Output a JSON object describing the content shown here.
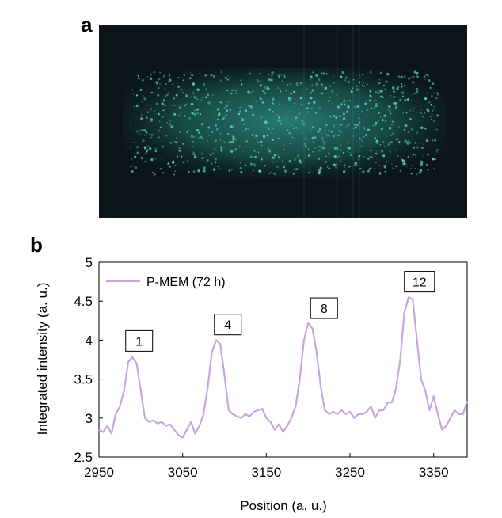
{
  "panels": {
    "a_label": "a",
    "b_label": "b"
  },
  "colors": {
    "trace": "#c9a6dc",
    "micrograph_bg": "#0d1a1f",
    "micrograph_glow": "#3fb9a0"
  },
  "chart_data": {
    "type": "line",
    "xlabel": "Position (a. u.)",
    "ylabel": "Integrated intensity (a. u.)",
    "xlim": [
      2950,
      3390
    ],
    "ylim": [
      2.5,
      5
    ],
    "xticks": [
      2950,
      3050,
      3150,
      3250,
      3350
    ],
    "yticks": [
      2.5,
      3,
      3.5,
      4,
      4.5,
      5
    ],
    "ytick_labels": [
      "2.5",
      "3",
      "3.5",
      "4",
      "4.5",
      "5"
    ],
    "grid": false,
    "legend": {
      "position": "top-left",
      "entries": [
        "P-MEM (72 h)"
      ]
    },
    "series": [
      {
        "name": "P-MEM (72 h)",
        "color": "#c9a6dc",
        "x": [
          2950,
          2955,
          2960,
          2965,
          2970,
          2975,
          2980,
          2985,
          2990,
          2995,
          3000,
          3005,
          3010,
          3015,
          3020,
          3025,
          3030,
          3035,
          3040,
          3045,
          3050,
          3055,
          3060,
          3065,
          3070,
          3075,
          3080,
          3085,
          3090,
          3095,
          3100,
          3105,
          3110,
          3115,
          3120,
          3125,
          3130,
          3135,
          3140,
          3145,
          3150,
          3155,
          3160,
          3165,
          3170,
          3175,
          3180,
          3185,
          3190,
          3195,
          3200,
          3205,
          3210,
          3215,
          3220,
          3225,
          3230,
          3235,
          3240,
          3245,
          3250,
          3255,
          3260,
          3265,
          3270,
          3275,
          3280,
          3285,
          3290,
          3295,
          3300,
          3305,
          3310,
          3315,
          3320,
          3325,
          3330,
          3335,
          3340,
          3345,
          3350,
          3355,
          3360,
          3365,
          3370,
          3375,
          3380,
          3385,
          3390
        ],
        "y": [
          2.85,
          2.82,
          2.9,
          2.8,
          3.05,
          3.15,
          3.35,
          3.72,
          3.78,
          3.7,
          3.35,
          3.0,
          2.95,
          2.97,
          2.93,
          2.95,
          2.9,
          2.92,
          2.85,
          2.78,
          2.75,
          2.85,
          2.95,
          2.8,
          2.9,
          3.05,
          3.4,
          3.85,
          4.0,
          3.95,
          3.55,
          3.1,
          3.05,
          3.02,
          3.0,
          3.05,
          3.02,
          3.08,
          3.1,
          3.12,
          3.0,
          2.95,
          2.85,
          2.92,
          2.82,
          2.9,
          3.0,
          3.15,
          3.5,
          4.0,
          4.22,
          4.15,
          3.85,
          3.4,
          3.1,
          3.05,
          3.08,
          3.05,
          3.1,
          3.05,
          3.08,
          3.0,
          3.05,
          3.05,
          3.08,
          3.15,
          3.0,
          3.1,
          3.1,
          3.2,
          3.2,
          3.38,
          3.75,
          4.35,
          4.55,
          4.52,
          4.0,
          3.5,
          3.35,
          3.1,
          3.28,
          3.05,
          2.85,
          2.9,
          3.0,
          3.1,
          3.05,
          3.05,
          3.22
        ]
      }
    ],
    "annotations": [
      {
        "text": "1",
        "x": 2998,
        "y": 3.99
      },
      {
        "text": "4",
        "x": 3104,
        "y": 4.2
      },
      {
        "text": "8",
        "x": 3219,
        "y": 4.41
      },
      {
        "text": "12",
        "x": 3333,
        "y": 4.75
      }
    ]
  }
}
